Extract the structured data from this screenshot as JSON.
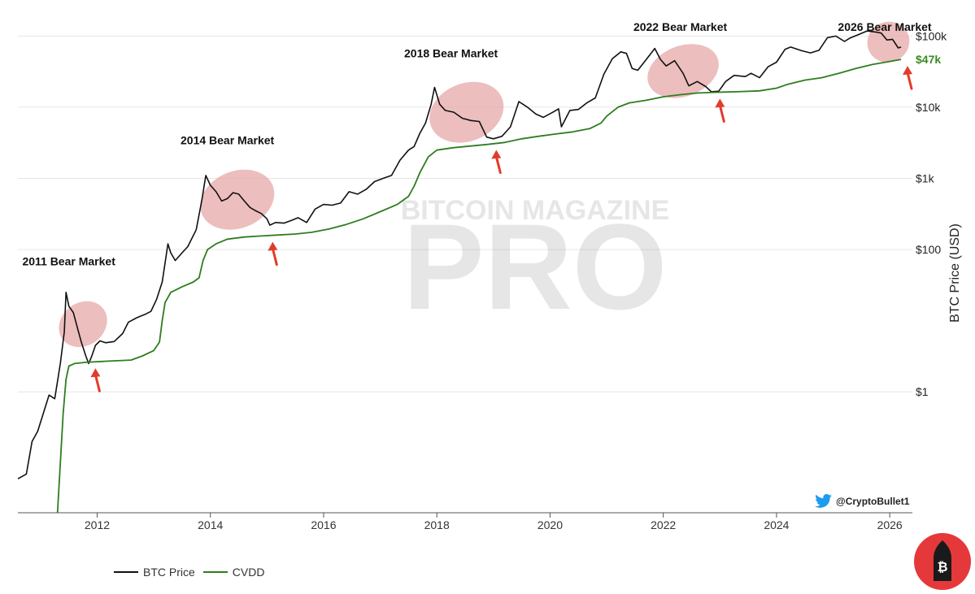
{
  "watermark": {
    "top": "BITCOIN MAGAZINE",
    "main": "PRO"
  },
  "handle": "@CryptoBullet1",
  "colors": {
    "price": "#111111",
    "cvdd": "#2e7d1e",
    "highlight": "#e6a3a3",
    "arrow": "#e23b2a",
    "cvdd_label": "#3a8a22",
    "twitter": "#1d9bf0",
    "badge": "#e5383b"
  },
  "chart_data": {
    "type": "line",
    "yscale": "log",
    "ylim": [
      0.02,
      200000
    ],
    "xlim": [
      2010.6,
      2026.4
    ],
    "ylabel": "BTC Price (USD)",
    "xlabel": "",
    "yticks": [
      {
        "value": 1,
        "label": "$1"
      },
      {
        "value": 100,
        "label": "$100"
      },
      {
        "value": 1000,
        "label": "$1k"
      },
      {
        "value": 10000,
        "label": "$10k"
      },
      {
        "value": 100000,
        "label": "$100k"
      }
    ],
    "xticks": [
      2012,
      2014,
      2016,
      2018,
      2020,
      2022,
      2024,
      2026
    ],
    "legend_position": "bottom-left",
    "series": [
      {
        "name": "BTC Price",
        "color": "#111111",
        "points": [
          [
            2010.6,
            0.06
          ],
          [
            2010.75,
            0.07
          ],
          [
            2010.85,
            0.2
          ],
          [
            2010.95,
            0.28
          ],
          [
            2011.05,
            0.5
          ],
          [
            2011.15,
            0.9
          ],
          [
            2011.25,
            0.8
          ],
          [
            2011.35,
            2.5
          ],
          [
            2011.42,
            7
          ],
          [
            2011.45,
            25
          ],
          [
            2011.5,
            16
          ],
          [
            2011.58,
            13
          ],
          [
            2011.65,
            8
          ],
          [
            2011.72,
            5
          ],
          [
            2011.8,
            3.2
          ],
          [
            2011.85,
            2.5
          ],
          [
            2011.9,
            3.1
          ],
          [
            2011.97,
            4.5
          ],
          [
            2012.05,
            5.2
          ],
          [
            2012.15,
            4.9
          ],
          [
            2012.3,
            5.1
          ],
          [
            2012.45,
            6.6
          ],
          [
            2012.55,
            9.5
          ],
          [
            2012.7,
            11
          ],
          [
            2012.85,
            12.3
          ],
          [
            2012.95,
            13.5
          ],
          [
            2013.05,
            20
          ],
          [
            2013.15,
            35
          ],
          [
            2013.25,
            120
          ],
          [
            2013.3,
            90
          ],
          [
            2013.38,
            70
          ],
          [
            2013.5,
            90
          ],
          [
            2013.6,
            110
          ],
          [
            2013.75,
            190
          ],
          [
            2013.85,
            500
          ],
          [
            2013.92,
            1100
          ],
          [
            2014.0,
            800
          ],
          [
            2014.1,
            650
          ],
          [
            2014.2,
            480
          ],
          [
            2014.3,
            520
          ],
          [
            2014.4,
            630
          ],
          [
            2014.5,
            600
          ],
          [
            2014.6,
            480
          ],
          [
            2014.7,
            390
          ],
          [
            2014.8,
            350
          ],
          [
            2014.9,
            320
          ],
          [
            2015.0,
            270
          ],
          [
            2015.05,
            220
          ],
          [
            2015.15,
            240
          ],
          [
            2015.3,
            235
          ],
          [
            2015.45,
            260
          ],
          [
            2015.55,
            280
          ],
          [
            2015.7,
            240
          ],
          [
            2015.85,
            370
          ],
          [
            2016.0,
            430
          ],
          [
            2016.15,
            420
          ],
          [
            2016.3,
            450
          ],
          [
            2016.45,
            650
          ],
          [
            2016.6,
            600
          ],
          [
            2016.75,
            700
          ],
          [
            2016.9,
            900
          ],
          [
            2017.05,
            1000
          ],
          [
            2017.2,
            1100
          ],
          [
            2017.35,
            1800
          ],
          [
            2017.5,
            2500
          ],
          [
            2017.6,
            2800
          ],
          [
            2017.7,
            4300
          ],
          [
            2017.8,
            6000
          ],
          [
            2017.9,
            11000
          ],
          [
            2017.96,
            19000
          ],
          [
            2018.05,
            11000
          ],
          [
            2018.15,
            9000
          ],
          [
            2018.3,
            8500
          ],
          [
            2018.45,
            7000
          ],
          [
            2018.6,
            6500
          ],
          [
            2018.75,
            6300
          ],
          [
            2018.88,
            3800
          ],
          [
            2019.0,
            3600
          ],
          [
            2019.15,
            3900
          ],
          [
            2019.3,
            5300
          ],
          [
            2019.45,
            12000
          ],
          [
            2019.6,
            10000
          ],
          [
            2019.75,
            8000
          ],
          [
            2019.88,
            7200
          ],
          [
            2020.05,
            8500
          ],
          [
            2020.15,
            9500
          ],
          [
            2020.2,
            5300
          ],
          [
            2020.35,
            9000
          ],
          [
            2020.5,
            9300
          ],
          [
            2020.65,
            11500
          ],
          [
            2020.8,
            13500
          ],
          [
            2020.95,
            29000
          ],
          [
            2021.1,
            48000
          ],
          [
            2021.25,
            60000
          ],
          [
            2021.35,
            57000
          ],
          [
            2021.45,
            35000
          ],
          [
            2021.55,
            33000
          ],
          [
            2021.7,
            47000
          ],
          [
            2021.85,
            67000
          ],
          [
            2021.95,
            47000
          ],
          [
            2022.05,
            38000
          ],
          [
            2022.2,
            45000
          ],
          [
            2022.35,
            30000
          ],
          [
            2022.45,
            20000
          ],
          [
            2022.6,
            23000
          ],
          [
            2022.75,
            19500
          ],
          [
            2022.85,
            16500
          ],
          [
            2022.98,
            16800
          ],
          [
            2023.1,
            23000
          ],
          [
            2023.25,
            28000
          ],
          [
            2023.45,
            27000
          ],
          [
            2023.55,
            30000
          ],
          [
            2023.7,
            26000
          ],
          [
            2023.85,
            37000
          ],
          [
            2024.0,
            43000
          ],
          [
            2024.15,
            65000
          ],
          [
            2024.25,
            70000
          ],
          [
            2024.45,
            62000
          ],
          [
            2024.6,
            58000
          ],
          [
            2024.75,
            63000
          ],
          [
            2024.9,
            95000
          ],
          [
            2025.05,
            100000
          ],
          [
            2025.2,
            84000
          ],
          [
            2025.3,
            94000
          ],
          [
            2025.45,
            105000
          ],
          [
            2025.6,
            118000
          ],
          [
            2025.75,
            114000
          ],
          [
            2025.85,
            110000
          ],
          [
            2025.95,
            88000
          ],
          [
            2026.05,
            90000
          ],
          [
            2026.15,
            68000
          ],
          [
            2026.2,
            70000
          ]
        ]
      },
      {
        "name": "CVDD",
        "color": "#2e7d1e",
        "points": [
          [
            2011.3,
            0.02
          ],
          [
            2011.35,
            0.1
          ],
          [
            2011.4,
            0.5
          ],
          [
            2011.45,
            1.5
          ],
          [
            2011.5,
            2.3
          ],
          [
            2011.6,
            2.5
          ],
          [
            2011.8,
            2.6
          ],
          [
            2012.2,
            2.7
          ],
          [
            2012.6,
            2.8
          ],
          [
            2012.8,
            3.2
          ],
          [
            2013.0,
            3.8
          ],
          [
            2013.1,
            5
          ],
          [
            2013.15,
            10
          ],
          [
            2013.2,
            18
          ],
          [
            2013.3,
            25
          ],
          [
            2013.5,
            30
          ],
          [
            2013.7,
            35
          ],
          [
            2013.8,
            40
          ],
          [
            2013.87,
            70
          ],
          [
            2013.95,
            100
          ],
          [
            2014.1,
            120
          ],
          [
            2014.3,
            140
          ],
          [
            2014.6,
            150
          ],
          [
            2014.9,
            155
          ],
          [
            2015.2,
            160
          ],
          [
            2015.5,
            165
          ],
          [
            2015.8,
            175
          ],
          [
            2016.1,
            195
          ],
          [
            2016.4,
            225
          ],
          [
            2016.7,
            270
          ],
          [
            2017.0,
            340
          ],
          [
            2017.3,
            430
          ],
          [
            2017.5,
            560
          ],
          [
            2017.6,
            780
          ],
          [
            2017.7,
            1200
          ],
          [
            2017.85,
            2000
          ],
          [
            2018.0,
            2500
          ],
          [
            2018.3,
            2700
          ],
          [
            2018.6,
            2850
          ],
          [
            2018.9,
            3000
          ],
          [
            2019.2,
            3200
          ],
          [
            2019.5,
            3600
          ],
          [
            2019.8,
            3900
          ],
          [
            2020.1,
            4200
          ],
          [
            2020.4,
            4500
          ],
          [
            2020.7,
            5000
          ],
          [
            2020.9,
            6000
          ],
          [
            2021.0,
            7500
          ],
          [
            2021.2,
            10000
          ],
          [
            2021.4,
            11500
          ],
          [
            2021.7,
            12500
          ],
          [
            2022.0,
            14000
          ],
          [
            2022.3,
            15000
          ],
          [
            2022.6,
            15800
          ],
          [
            2022.9,
            16200
          ],
          [
            2023.3,
            16500
          ],
          [
            2023.7,
            17000
          ],
          [
            2024.0,
            18500
          ],
          [
            2024.2,
            21000
          ],
          [
            2024.5,
            24000
          ],
          [
            2024.8,
            26000
          ],
          [
            2025.1,
            30000
          ],
          [
            2025.4,
            35000
          ],
          [
            2025.7,
            40000
          ],
          [
            2026.0,
            44000
          ],
          [
            2026.2,
            47000
          ]
        ]
      }
    ],
    "annotations": [
      {
        "text": "2011 Bear Market",
        "x": 2011.5,
        "y": 60
      },
      {
        "text": "2014 Bear Market",
        "x": 2014.3,
        "y": 3000
      },
      {
        "text": "2018 Bear Market",
        "x": 2018.25,
        "y": 50000
      },
      {
        "text": "2022 Bear Market",
        "x": 2022.3,
        "y": 160000
      },
      {
        "text": "2026 Bear Market",
        "x": 2025.95,
        "y": 300000
      }
    ],
    "highlights": [
      {
        "x_from": 2011.4,
        "x_to": 2012.1,
        "y_from": 2.0,
        "y_to": 40
      },
      {
        "x_from": 2013.8,
        "x_to": 2015.15,
        "y_from": 180,
        "y_to": 1400
      },
      {
        "x_from": 2017.85,
        "x_to": 2019.2,
        "y_from": 3000,
        "y_to": 24000
      },
      {
        "x_from": 2021.7,
        "x_to": 2023.0,
        "y_from": 13000,
        "y_to": 80000
      },
      {
        "x_from": 2025.6,
        "x_to": 2026.35,
        "y_from": 40000,
        "y_to": 170000
      }
    ],
    "arrows": [
      {
        "x": 2011.97
      },
      {
        "x": 2015.1
      },
      {
        "x": 2019.05
      },
      {
        "x": 2023.0
      },
      {
        "x": 2026.35
      }
    ],
    "cvdd_label": {
      "text": "$47k",
      "value": 47000
    }
  }
}
